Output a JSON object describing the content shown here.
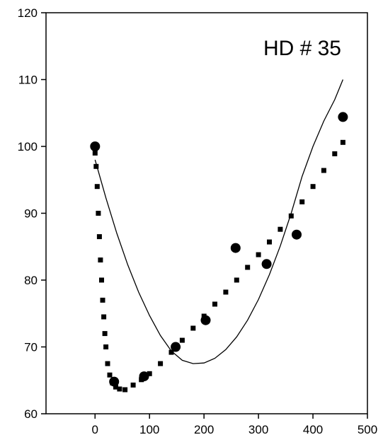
{
  "chart_data": {
    "type": "scatter",
    "title": "",
    "xlabel": "",
    "ylabel": "",
    "annotation": "HD # 35",
    "xlim": [
      -90,
      500
    ],
    "ylim": [
      60,
      120
    ],
    "xticks": [
      0,
      100,
      200,
      300,
      400,
      500
    ],
    "yticks": [
      60,
      70,
      80,
      90,
      100,
      110,
      120
    ],
    "grid": false,
    "legend": "none",
    "series": [
      {
        "kind": "points",
        "marker": "filled-circle",
        "color": "#000000",
        "x": [
          0,
          35,
          90,
          148,
          203,
          258,
          315,
          370,
          455
        ],
        "y": [
          100,
          64.8,
          65.6,
          70.0,
          74.0,
          84.8,
          82.4,
          86.8,
          104.4
        ]
      },
      {
        "kind": "dotted-curve",
        "marker": "square",
        "color": "#000000",
        "x": [
          0,
          2,
          4,
          6,
          8,
          10,
          12,
          14,
          16,
          18,
          20,
          23,
          27,
          32,
          38,
          45,
          55,
          70,
          85,
          100,
          120,
          140,
          160,
          180,
          200,
          220,
          240,
          260,
          280,
          300,
          320,
          340,
          360,
          380,
          400,
          420,
          440,
          455
        ],
        "y": [
          99.0,
          97.0,
          94.0,
          90.0,
          86.5,
          83.0,
          80.0,
          77.0,
          74.5,
          72.0,
          70.0,
          67.5,
          65.8,
          64.6,
          64.0,
          63.7,
          63.6,
          64.3,
          65.1,
          66.0,
          67.5,
          69.2,
          71.0,
          72.8,
          74.6,
          76.4,
          78.2,
          80.0,
          81.9,
          83.8,
          85.7,
          87.6,
          89.6,
          91.7,
          94.0,
          96.4,
          98.9,
          100.6
        ]
      },
      {
        "kind": "line",
        "color": "#000000",
        "x": [
          0,
          20,
          40,
          60,
          80,
          100,
          120,
          140,
          160,
          180,
          200,
          220,
          240,
          260,
          280,
          300,
          320,
          340,
          360,
          380,
          400,
          420,
          440,
          455
        ],
        "y": [
          98.0,
          92.3,
          87.0,
          82.3,
          78.2,
          74.7,
          71.7,
          69.4,
          68.0,
          67.5,
          67.6,
          68.3,
          69.6,
          71.5,
          74.0,
          77.1,
          80.8,
          85.1,
          90.0,
          95.5,
          100.0,
          103.8,
          107.0,
          110.0
        ]
      }
    ]
  }
}
